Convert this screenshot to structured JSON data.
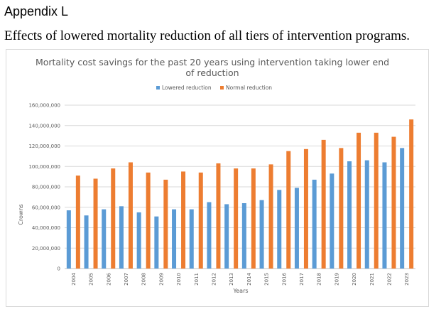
{
  "document": {
    "heading": "Appendix L",
    "caption": "Effects of lowered mortality reduction of all tiers of intervention programs."
  },
  "colors": {
    "lowered": "#5b9bd5",
    "normal": "#ed7d31",
    "grid": "#d9d9d9",
    "text": "#595959"
  },
  "chart_data": {
    "type": "bar",
    "title_lines": [
      "Mortality cost savings for the past 20 years using intervention taking lower end",
      "of reduction"
    ],
    "xlabel": "Years",
    "ylabel": "Crowns",
    "ylim": [
      0,
      160000000
    ],
    "yticks": [
      0,
      20000000,
      40000000,
      60000000,
      80000000,
      100000000,
      120000000,
      140000000,
      160000000
    ],
    "ytick_labels": [
      "0",
      "20,000,000",
      "40,000,000",
      "60,000,000",
      "80,000,000",
      "100,000,000",
      "120,000,000",
      "140,000,000",
      "160,000,000"
    ],
    "grid": true,
    "legend_position": "top-center",
    "categories": [
      "2004",
      "2005",
      "2006",
      "2007",
      "2008",
      "2009",
      "2010",
      "2011",
      "2012",
      "2013",
      "2014",
      "2015",
      "2016",
      "2017",
      "2018",
      "2019",
      "2020",
      "2021",
      "2022",
      "2023"
    ],
    "series": [
      {
        "name": "Lowered reduction",
        "color": "#5b9bd5",
        "values": [
          57000000,
          52000000,
          58000000,
          61000000,
          55000000,
          51000000,
          58000000,
          58000000,
          65000000,
          63000000,
          64000000,
          67000000,
          77000000,
          79000000,
          87000000,
          93000000,
          105000000,
          106000000,
          104000000,
          118000000
        ]
      },
      {
        "name": "Normal reduction",
        "color": "#ed7d31",
        "values": [
          91000000,
          88000000,
          98000000,
          104000000,
          94000000,
          87000000,
          95000000,
          94000000,
          103000000,
          98000000,
          98000000,
          102000000,
          115000000,
          117000000,
          126000000,
          118000000,
          133000000,
          133000000,
          129000000,
          146000000
        ]
      }
    ]
  }
}
